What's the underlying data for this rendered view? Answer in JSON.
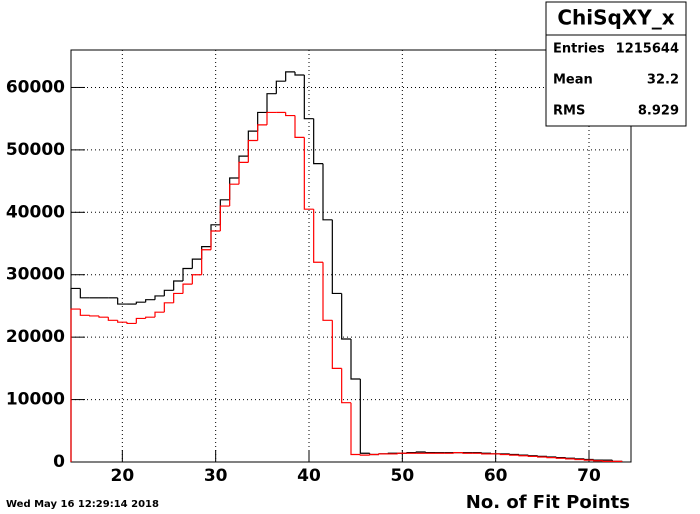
{
  "chart_data": {
    "type": "histogram",
    "x_label": "No. of Fit Points",
    "timestamp": "Wed May 16 12:29:14 2018",
    "stats": {
      "title": "ChiSqXY_x",
      "entries_label": "Entries",
      "entries": 1215644,
      "mean_label": "Mean",
      "mean": 32.2,
      "rms_label": "RMS",
      "rms": 8.929
    },
    "bins": [
      14.5,
      15.5,
      16.5,
      17.5,
      18.5,
      19.5,
      20.5,
      21.5,
      22.5,
      23.5,
      24.5,
      25.5,
      26.5,
      27.5,
      28.5,
      29.5,
      30.5,
      31.5,
      32.5,
      33.5,
      34.5,
      35.5,
      36.5,
      37.5,
      38.5,
      39.5,
      40.5,
      41.5,
      42.5,
      43.5,
      44.5,
      45.5,
      46.5,
      47.5,
      48.5,
      49.5,
      50.5,
      51.5,
      52.5,
      53.5,
      54.5,
      55.5,
      56.5,
      57.5,
      58.5,
      59.5,
      60.5,
      61.5,
      62.5,
      63.5,
      64.5,
      65.5,
      66.5,
      67.5,
      68.5,
      69.5,
      70.5,
      71.5,
      72.5,
      73.5
    ],
    "series": [
      {
        "color": "#000000",
        "values": [
          27800,
          26300,
          26300,
          26300,
          26300,
          25300,
          25300,
          25600,
          26000,
          26600,
          27500,
          29000,
          31000,
          32500,
          34500,
          38000,
          42000,
          45500,
          49000,
          53000,
          56000,
          59000,
          61000,
          62500,
          62000,
          55000,
          47800,
          38800,
          27000,
          19700,
          13300,
          1400,
          1200,
          1300,
          1400,
          1400,
          1500,
          1600,
          1500,
          1500,
          1500,
          1500,
          1500,
          1500,
          1400,
          1300,
          1300,
          1200,
          1100,
          1000,
          900,
          800,
          700,
          600,
          500,
          400,
          300,
          300,
          100
        ]
      },
      {
        "color": "#ff0000",
        "values": [
          24500,
          23500,
          23400,
          23200,
          22700,
          22400,
          22200,
          23000,
          23200,
          24000,
          25500,
          27000,
          28500,
          30000,
          34000,
          37000,
          41000,
          44500,
          48000,
          51500,
          54000,
          56000,
          56000,
          55500,
          52000,
          40500,
          32000,
          22700,
          15000,
          9500,
          1200,
          1100,
          1200,
          1300,
          1300,
          1400,
          1400,
          1400,
          1400,
          1400,
          1400,
          1500,
          1400,
          1400,
          1300,
          1300,
          1200,
          1100,
          1000,
          900,
          800,
          700,
          600,
          500,
          400,
          300,
          200,
          100,
          100
        ]
      }
    ],
    "xlim": [
      14.5,
      74.5
    ],
    "xticks": [
      20,
      30,
      40,
      50,
      60,
      70
    ],
    "ylim": [
      0,
      66000
    ],
    "yticks": [
      0,
      10000,
      20000,
      30000,
      40000,
      50000,
      60000
    ],
    "grid": true
  }
}
